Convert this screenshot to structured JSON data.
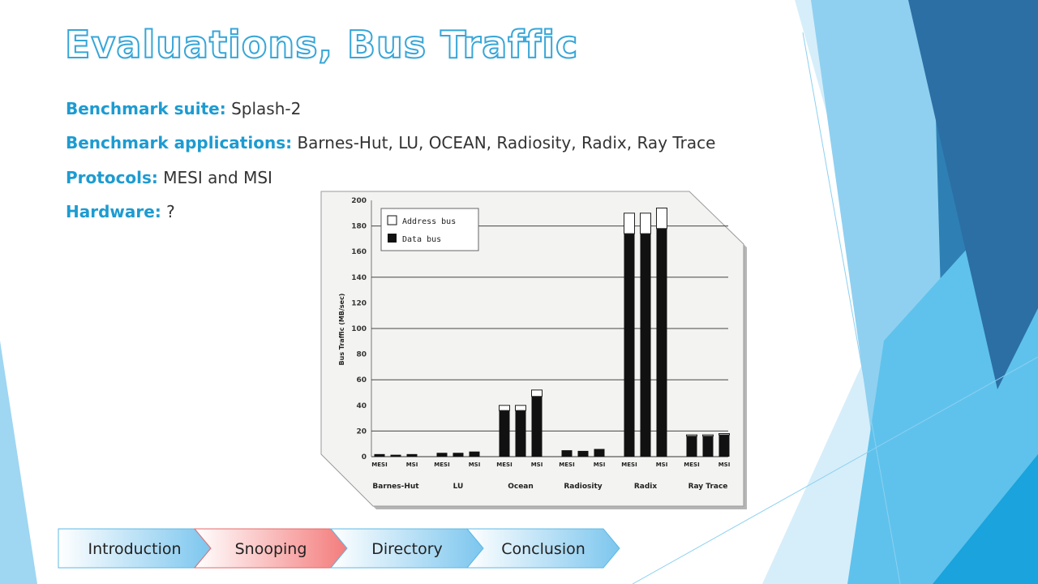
{
  "slide": {
    "title": "Evaluations, Bus Traffic",
    "lines": [
      {
        "key": "Benchmark suite:",
        "value": "Splash-2"
      },
      {
        "key": "Benchmark applications:",
        "value": "Barnes-Hut, LU, OCEAN, Radiosity, Radix, Ray Trace"
      },
      {
        "key": "Protocols:",
        "value": "MESI and MSI"
      },
      {
        "key": "Hardware:",
        "value": "?"
      }
    ]
  },
  "nav": {
    "items": [
      "Introduction",
      "Snooping",
      "Directory",
      "Conclusion"
    ],
    "active": 1
  },
  "colors": {
    "accent": "#1d9bd1",
    "title_outline": "#37a6d8",
    "active_step": "#f47c7c",
    "inactive_step": "#7cc6ee"
  },
  "chart_data": {
    "type": "bar",
    "stacked": true,
    "ylabel": "Bus Traffic (MB/sec)",
    "ylim": [
      0,
      200
    ],
    "yticks": [
      0,
      20,
      40,
      60,
      80,
      100,
      120,
      140,
      160,
      180,
      200
    ],
    "gridlines": [
      20,
      60,
      100,
      140,
      180
    ],
    "groups": [
      "Barnes-Hut",
      "LU",
      "Ocean",
      "Radiosity",
      "Radix",
      "Ray Trace"
    ],
    "legend": {
      "position": "top-left",
      "entries": [
        "Address bus",
        "Data bus"
      ]
    },
    "bars": [
      {
        "group": "Barnes-Hut",
        "label": "MESI",
        "data": 2,
        "address": 0
      },
      {
        "group": "Barnes-Hut",
        "label": "",
        "data": 1.5,
        "address": 0
      },
      {
        "group": "Barnes-Hut",
        "label": "MSI",
        "data": 2,
        "address": 0
      },
      {
        "group": "LU",
        "label": "MESI",
        "data": 3,
        "address": 0
      },
      {
        "group": "LU",
        "label": "",
        "data": 3,
        "address": 0
      },
      {
        "group": "LU",
        "label": "MSI",
        "data": 4,
        "address": 0
      },
      {
        "group": "Ocean",
        "label": "MESI",
        "data": 36,
        "address": 4
      },
      {
        "group": "Ocean",
        "label": "",
        "data": 36,
        "address": 4
      },
      {
        "group": "Ocean",
        "label": "MSI",
        "data": 47,
        "address": 5
      },
      {
        "group": "Radiosity",
        "label": "MESI",
        "data": 5,
        "address": 0
      },
      {
        "group": "Radiosity",
        "label": "",
        "data": 4.5,
        "address": 0
      },
      {
        "group": "Radiosity",
        "label": "MSI",
        "data": 6,
        "address": 0
      },
      {
        "group": "Radix",
        "label": "MESI",
        "data": 174,
        "address": 16
      },
      {
        "group": "Radix",
        "label": "",
        "data": 174,
        "address": 16
      },
      {
        "group": "Radix",
        "label": "MSI",
        "data": 178,
        "address": 16
      },
      {
        "group": "Ray Trace",
        "label": "MESI",
        "data": 16,
        "address": 1
      },
      {
        "group": "Ray Trace",
        "label": "",
        "data": 16,
        "address": 1
      },
      {
        "group": "Ray Trace",
        "label": "MSI",
        "data": 17,
        "address": 1
      }
    ]
  }
}
